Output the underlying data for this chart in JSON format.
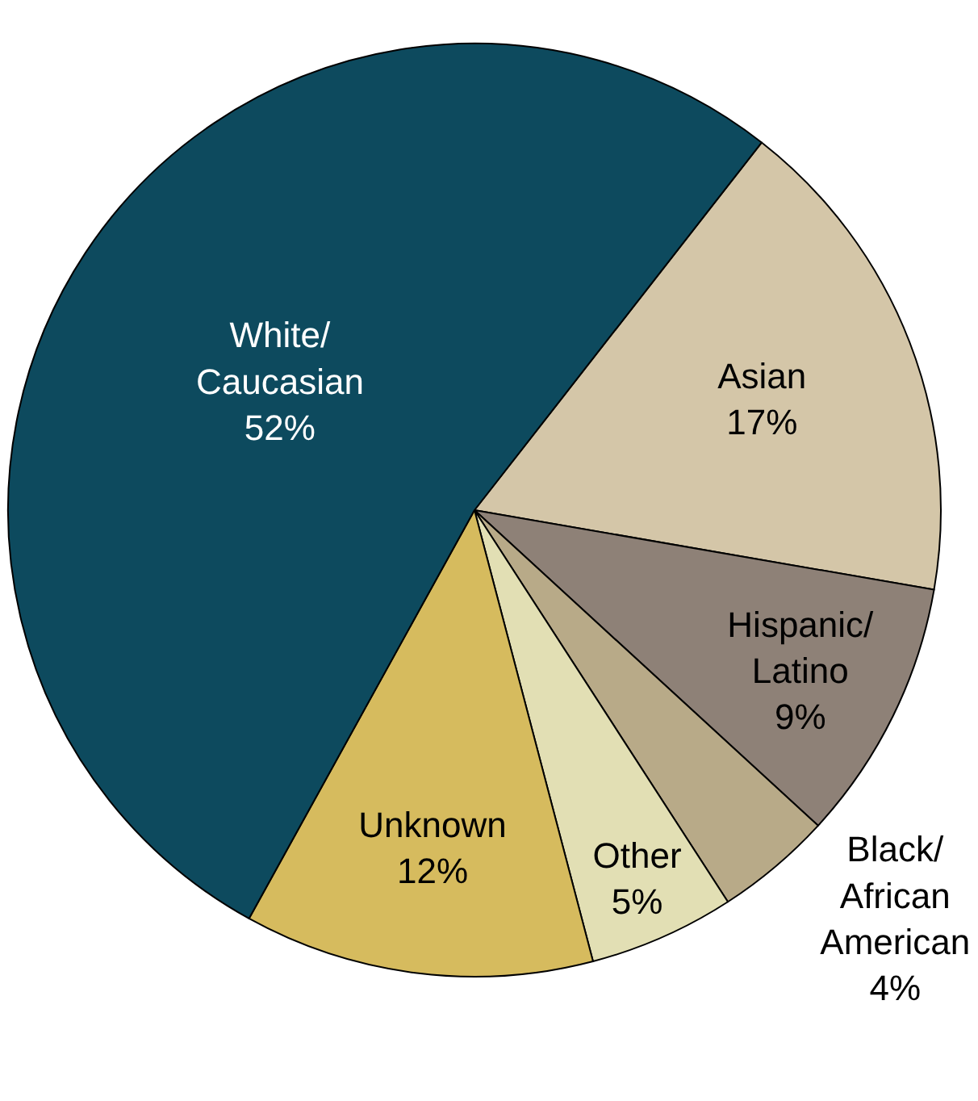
{
  "chart_data": {
    "type": "pie",
    "categories": [
      "Asian",
      "Hispanic/\nLatino",
      "Black/\nAfrican\nAmerican",
      "Other",
      "Unknown",
      "White/\nCaucasian"
    ],
    "values": [
      17,
      9,
      4,
      5,
      12,
      52
    ],
    "value_labels": [
      "17%",
      "9%",
      "4%",
      "5%",
      "12%",
      "52%"
    ],
    "colors": [
      "#d4c6a8",
      "#8e8177",
      "#b8aa88",
      "#e2dfb4",
      "#d6bb5e",
      "#0d4a5e"
    ],
    "legend": false
  }
}
